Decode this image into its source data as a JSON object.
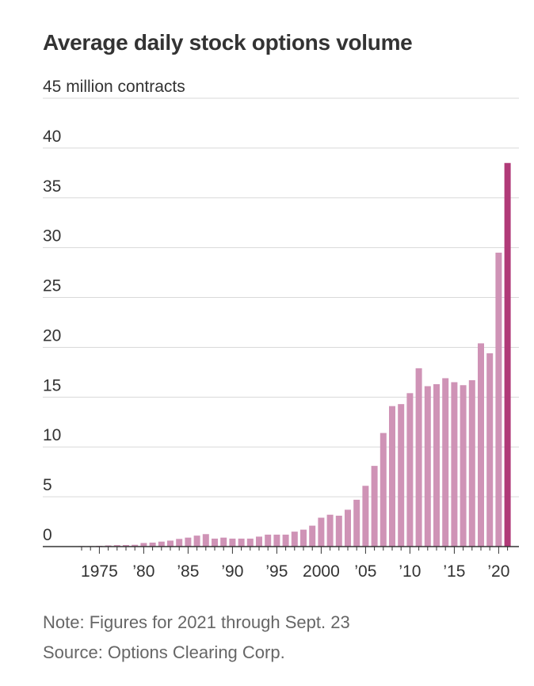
{
  "title": "Average daily stock options volume",
  "note": "Note: Figures for 2021 through Sept. 23",
  "source": "Source: Options Clearing Corp.",
  "colors": {
    "bar": "#cf93b6",
    "highlight": "#b03a78",
    "grid": "#d9d9d9",
    "axis": "#333333",
    "text": "#333333"
  },
  "chart_data": {
    "type": "bar",
    "title": "Average daily stock options volume",
    "ylabel": "45 million contracts",
    "ylim": [
      0,
      45
    ],
    "yticks": [
      0,
      5,
      10,
      15,
      20,
      25,
      30,
      35,
      40,
      45
    ],
    "ytick_labels": [
      "0",
      "5",
      "10",
      "15",
      "20",
      "25",
      "30",
      "35",
      "40",
      "45 million contracts"
    ],
    "xtick_labels": [
      {
        "year": 1975,
        "label": "1975"
      },
      {
        "year": 1980,
        "label": "’80"
      },
      {
        "year": 1985,
        "label": "’85"
      },
      {
        "year": 1990,
        "label": "’90"
      },
      {
        "year": 1995,
        "label": "’95"
      },
      {
        "year": 2000,
        "label": "2000"
      },
      {
        "year": 2005,
        "label": "’05"
      },
      {
        "year": 2010,
        "label": "’10"
      },
      {
        "year": 2015,
        "label": "’15"
      },
      {
        "year": 2020,
        "label": "’20"
      }
    ],
    "years": [
      1973,
      1974,
      1975,
      1976,
      1977,
      1978,
      1979,
      1980,
      1981,
      1982,
      1983,
      1984,
      1985,
      1986,
      1987,
      1988,
      1989,
      1990,
      1991,
      1992,
      1993,
      1994,
      1995,
      1996,
      1997,
      1998,
      1999,
      2000,
      2001,
      2002,
      2003,
      2004,
      2005,
      2006,
      2007,
      2008,
      2009,
      2010,
      2011,
      2012,
      2013,
      2014,
      2015,
      2016,
      2017,
      2018,
      2019,
      2020,
      2021
    ],
    "values": [
      0.01,
      0.03,
      0.08,
      0.12,
      0.15,
      0.16,
      0.18,
      0.36,
      0.4,
      0.5,
      0.6,
      0.77,
      0.9,
      1.1,
      1.25,
      0.8,
      0.9,
      0.8,
      0.8,
      0.8,
      1.0,
      1.2,
      1.2,
      1.2,
      1.5,
      1.7,
      2.1,
      2.9,
      3.2,
      3.1,
      3.7,
      4.7,
      6.1,
      8.1,
      11.4,
      14.1,
      14.3,
      15.4,
      17.9,
      16.1,
      16.3,
      16.9,
      16.5,
      16.2,
      16.7,
      20.4,
      19.4,
      29.5,
      38.5
    ],
    "highlight_year": 2021,
    "grid": true
  }
}
